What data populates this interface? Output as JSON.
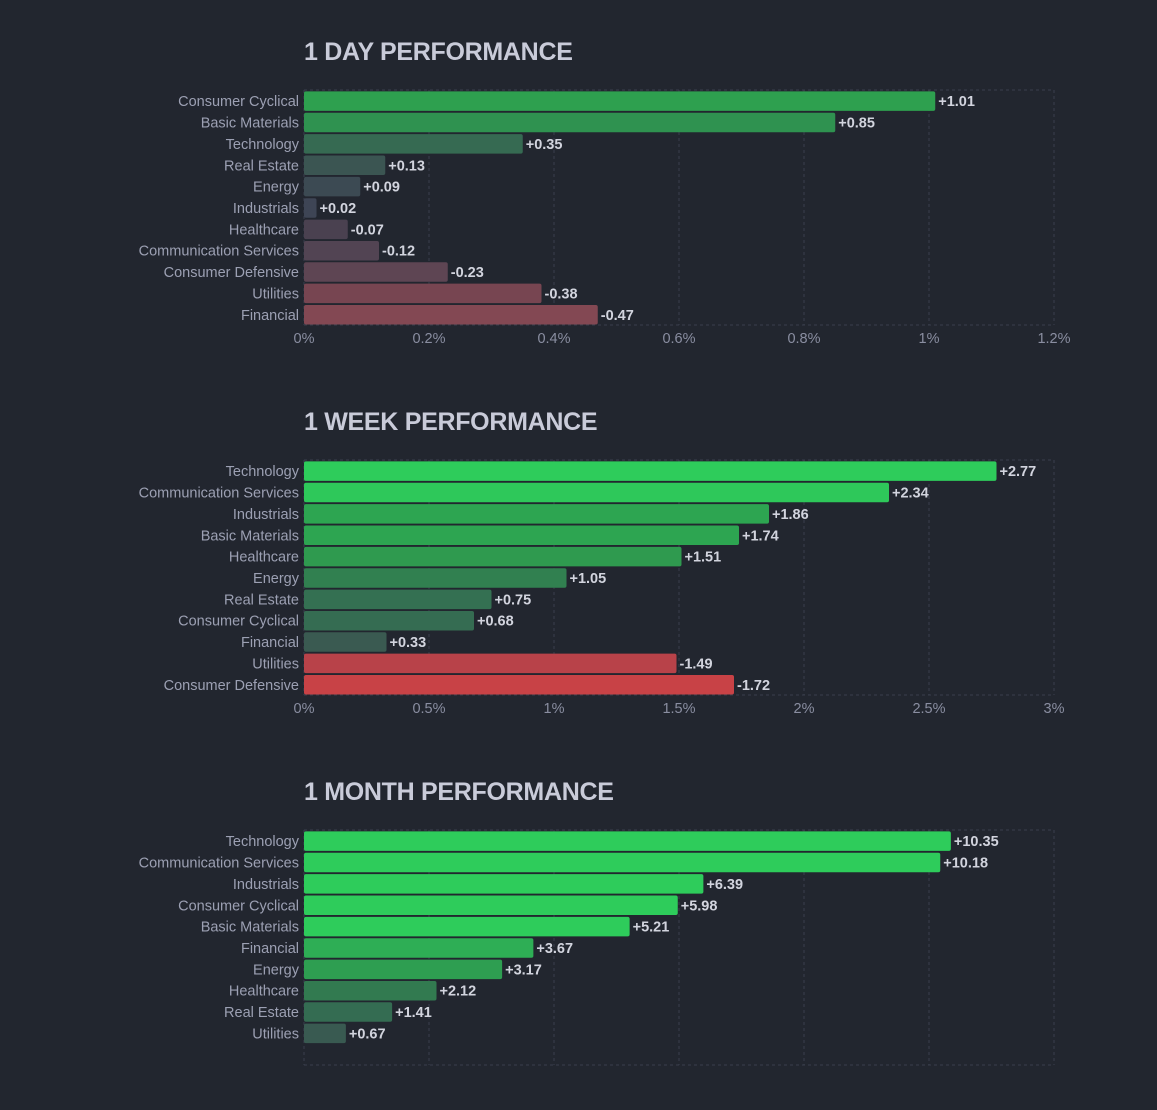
{
  "colors": {
    "background": "#22262f",
    "title": "#c9cbd9",
    "grid": "#3a3f4c",
    "positive_strong": "#2ecc5b",
    "negative_strong": "#c84246"
  },
  "chart_data": [
    {
      "type": "bar",
      "orientation": "horizontal",
      "title": "1 DAY PERFORMANCE",
      "xlabel": "",
      "ylabel": "",
      "xlim": [
        0,
        1.2
      ],
      "x_ticks": [
        "0%",
        "0.2%",
        "0.4%",
        "0.6%",
        "0.8%",
        "1%",
        "1.2%"
      ],
      "x_tick_values": [
        0,
        0.2,
        0.4,
        0.6,
        0.8,
        1.0,
        1.2
      ],
      "grid": true,
      "value_axis": "absolute value of % change",
      "categories": [
        "Consumer Cyclical",
        "Basic Materials",
        "Technology",
        "Real Estate",
        "Energy",
        "Industrials",
        "Healthcare",
        "Communication Services",
        "Consumer Defensive",
        "Utilities",
        "Financial"
      ],
      "values": [
        1.01,
        0.85,
        0.35,
        0.13,
        0.09,
        0.02,
        -0.07,
        -0.12,
        -0.23,
        -0.38,
        -0.47
      ],
      "value_labels": [
        "+1.01",
        "+0.85",
        "+0.35",
        "+0.13",
        "+0.09",
        "+0.02",
        "-0.07",
        "-0.12",
        "-0.23",
        "-0.38",
        "-0.47"
      ],
      "bar_colors": [
        "#2ea04f",
        "#2f9250",
        "#366a52",
        "#3b5552",
        "#3c4a53",
        "#3e4555",
        "#4a4150",
        "#524453",
        "#5e4553",
        "#774551",
        "#834853"
      ]
    },
    {
      "type": "bar",
      "orientation": "horizontal",
      "title": "1 WEEK PERFORMANCE",
      "xlabel": "",
      "ylabel": "",
      "xlim": [
        0,
        3
      ],
      "x_ticks": [
        "0%",
        "0.5%",
        "1%",
        "1.5%",
        "2%",
        "2.5%",
        "3%"
      ],
      "x_tick_values": [
        0,
        0.5,
        1,
        1.5,
        2,
        2.5,
        3
      ],
      "grid": true,
      "value_axis": "absolute value of % change",
      "categories": [
        "Technology",
        "Communication Services",
        "Industrials",
        "Basic Materials",
        "Healthcare",
        "Energy",
        "Real Estate",
        "Consumer Cyclical",
        "Financial",
        "Utilities",
        "Consumer Defensive"
      ],
      "values": [
        2.77,
        2.34,
        1.86,
        1.74,
        1.51,
        1.05,
        0.75,
        0.68,
        0.33,
        -1.49,
        -1.72
      ],
      "value_labels": [
        "+2.77",
        "+2.34",
        "+1.86",
        "+1.74",
        "+1.51",
        "+1.05",
        "+0.75",
        "+0.68",
        "+0.33",
        "-1.49",
        "-1.72"
      ],
      "bar_colors": [
        "#2ecc5b",
        "#2ec85a",
        "#2da551",
        "#2da551",
        "#2f9a4f",
        "#318050",
        "#347052",
        "#356c52",
        "#3a5a51",
        "#b84249",
        "#c84246"
      ]
    },
    {
      "type": "bar",
      "orientation": "horizontal",
      "title": "1 MONTH PERFORMANCE",
      "xlabel": "",
      "ylabel": "",
      "xlim": [
        0,
        12
      ],
      "x_ticks": [],
      "x_tick_values": [
        0,
        2,
        4,
        6,
        8,
        10,
        12
      ],
      "grid": true,
      "value_axis": "absolute value of % change",
      "categories": [
        "Technology",
        "Communication Services",
        "Industrials",
        "Consumer Cyclical",
        "Basic Materials",
        "Financial",
        "Energy",
        "Healthcare",
        "Real Estate",
        "Utilities"
      ],
      "values": [
        10.35,
        10.18,
        6.39,
        5.98,
        5.21,
        3.67,
        3.17,
        2.12,
        1.41,
        0.67
      ],
      "value_labels": [
        "+10.35",
        "+10.18",
        "+6.39",
        "+5.98",
        "+5.21",
        "+3.67",
        "+3.17",
        "+2.12",
        "+1.41",
        "+0.67"
      ],
      "bar_colors": [
        "#2ecc5b",
        "#2ecc5b",
        "#2ecc5b",
        "#2ecc5b",
        "#2ecc5b",
        "#2eae55",
        "#2e9e51",
        "#327a50",
        "#346c52",
        "#395a51"
      ]
    }
  ]
}
